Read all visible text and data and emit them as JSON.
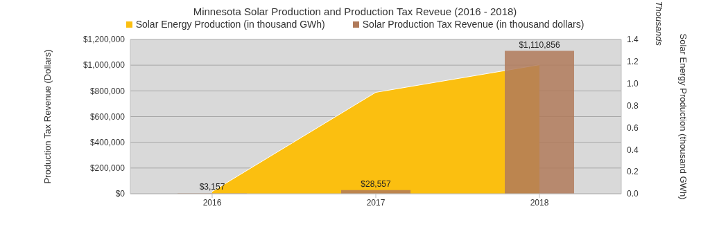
{
  "chart_data": {
    "type": "bar",
    "title": "Minnesota Solar Production and Production Tax Reveue (2016 - 2018)",
    "categories": [
      "2016",
      "2017",
      "2018"
    ],
    "series": [
      {
        "name": "Solar Energy Production (in thousand GWh)",
        "type": "area",
        "axis": "y2",
        "color": "#fbbf10",
        "values": [
          0.02,
          0.92,
          1.17
        ]
      },
      {
        "name": "Solar Production Tax Revenue (in thousand dollars)",
        "color": "#b07a5a",
        "values": [
          3157,
          28557,
          1110856
        ],
        "value_labels": [
          "$3,157",
          "$28,557",
          "$1,110,856"
        ]
      }
    ],
    "ylabel": "Production Tax Revenue (Dollars)",
    "y2label": "Solar Energy Production (thousand GWh)",
    "annotations": [
      "Thousands"
    ],
    "ylim": [
      0,
      1200000
    ],
    "yticks": [
      {
        "value": 0,
        "label": "$0"
      },
      {
        "value": 200000,
        "label": "$200,000"
      },
      {
        "value": 400000,
        "label": "$400,000"
      },
      {
        "value": 600000,
        "label": "$600,000"
      },
      {
        "value": 800000,
        "label": "$800,000"
      },
      {
        "value": 1000000,
        "label": "$1,000,000"
      },
      {
        "value": 1200000,
        "label": "$1,200,000"
      }
    ],
    "y2lim": [
      0,
      1.4
    ],
    "y2ticks": [
      {
        "value": 0,
        "label": "0.0"
      },
      {
        "value": 0.2,
        "label": "0.2"
      },
      {
        "value": 0.4,
        "label": "0.4"
      },
      {
        "value": 0.6,
        "label": "0.6"
      },
      {
        "value": 0.8,
        "label": "0.8"
      },
      {
        "value": 1,
        "label": "1.0"
      },
      {
        "value": 1.2,
        "label": "1.2"
      },
      {
        "value": 1.4,
        "label": "1.4"
      }
    ],
    "grid": "y",
    "legend": "top"
  }
}
